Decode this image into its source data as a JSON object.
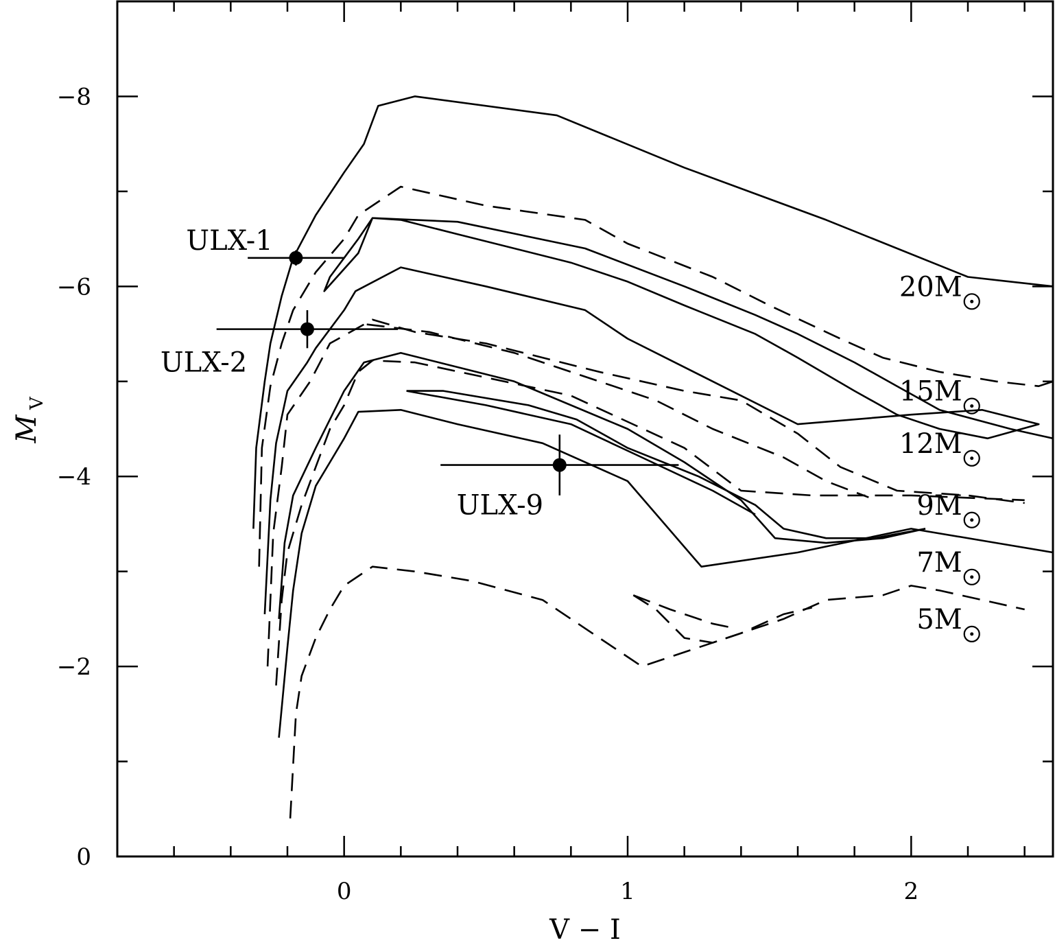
{
  "chart_data": {
    "type": "line",
    "title": "",
    "xlabel": "V − I",
    "ylabel": {
      "main": "M",
      "sub": "V"
    },
    "xlim": [
      -0.8,
      2.5
    ],
    "ylim": [
      0,
      -9
    ],
    "y_inverted": true,
    "xticks": [
      {
        "value": 0,
        "label": "0"
      },
      {
        "value": 1,
        "label": "1"
      },
      {
        "value": 2,
        "label": "2"
      }
    ],
    "yticks": [
      {
        "value": 0,
        "label": "0"
      },
      {
        "value": -2,
        "label": "−2"
      },
      {
        "value": -4,
        "label": "−4"
      },
      {
        "value": -6,
        "label": "−6"
      },
      {
        "value": -8,
        "label": "−8"
      }
    ],
    "x_minor_step": 0.2,
    "y_minor_step": 1,
    "grid": false,
    "series": [
      {
        "style": "solid",
        "points": [
          [
            -0.23,
            -1.25
          ],
          [
            -0.2,
            -2.2
          ],
          [
            -0.18,
            -2.8
          ],
          [
            -0.15,
            -3.4
          ],
          [
            -0.1,
            -3.9
          ],
          [
            -0.05,
            -4.15
          ],
          [
            0,
            -4.4
          ],
          [
            0.05,
            -4.68
          ],
          [
            0.2,
            -4.7
          ],
          [
            0.4,
            -4.55
          ],
          [
            0.7,
            -4.35
          ],
          [
            1.0,
            -3.95
          ],
          [
            1.26,
            -3.05
          ],
          [
            1.6,
            -3.2
          ],
          [
            2.0,
            -3.45
          ],
          [
            2.3,
            -3.3
          ],
          [
            2.5,
            -3.2
          ]
        ]
      },
      {
        "style": "dashed",
        "points": [
          [
            -0.19,
            -0.4
          ],
          [
            -0.17,
            -1.5
          ],
          [
            -0.15,
            -1.9
          ],
          [
            -0.1,
            -2.3
          ],
          [
            -0.05,
            -2.6
          ],
          [
            0,
            -2.85
          ],
          [
            0.1,
            -3.05
          ],
          [
            0.25,
            -3.0
          ],
          [
            0.45,
            -2.9
          ],
          [
            0.7,
            -2.7
          ],
          [
            0.85,
            -2.4
          ],
          [
            1.05,
            -2.0
          ],
          [
            1.25,
            -2.2
          ],
          [
            1.45,
            -2.4
          ],
          [
            1.55,
            -2.5
          ],
          [
            1.7,
            -2.7
          ],
          [
            1.9,
            -2.75
          ],
          [
            2.0,
            -2.85
          ],
          [
            2.1,
            -2.8
          ],
          [
            2.25,
            -2.7
          ],
          [
            2.4,
            -2.6
          ]
        ]
      },
      {
        "style": "dashed",
        "points": [
          [
            1.02,
            -2.75
          ],
          [
            1.1,
            -2.6
          ],
          [
            1.2,
            -2.3
          ],
          [
            1.3,
            -2.25
          ],
          [
            1.4,
            -2.35
          ],
          [
            1.55,
            -2.55
          ],
          [
            1.65,
            -2.62
          ]
        ]
      },
      {
        "style": "dashed",
        "points": [
          [
            1.02,
            -2.75
          ],
          [
            1.15,
            -2.6
          ],
          [
            1.3,
            -2.45
          ],
          [
            1.38,
            -2.4
          ]
        ]
      },
      {
        "style": "solid",
        "points": [
          [
            -0.23,
            -2.5
          ],
          [
            -0.21,
            -3.3
          ],
          [
            -0.18,
            -3.8
          ],
          [
            -0.1,
            -4.3
          ],
          [
            0,
            -4.9
          ],
          [
            0.07,
            -5.2
          ],
          [
            0.2,
            -5.3
          ],
          [
            0.6,
            -5.0
          ],
          [
            1.0,
            -4.5
          ],
          [
            1.2,
            -4.15
          ],
          [
            1.4,
            -3.75
          ],
          [
            1.52,
            -3.35
          ],
          [
            1.7,
            -3.3
          ],
          [
            1.9,
            -3.35
          ],
          [
            2.05,
            -3.45
          ]
        ]
      },
      {
        "style": "solid",
        "points": [
          [
            0.22,
            -4.9
          ],
          [
            0.35,
            -4.9
          ],
          [
            0.65,
            -4.75
          ],
          [
            0.82,
            -4.6
          ],
          [
            1.0,
            -4.3
          ],
          [
            1.25,
            -4.0
          ],
          [
            1.45,
            -3.7
          ],
          [
            1.55,
            -3.45
          ],
          [
            1.7,
            -3.35
          ],
          [
            1.87,
            -3.35
          ],
          [
            2.05,
            -3.45
          ]
        ]
      },
      {
        "style": "solid",
        "points": [
          [
            0.22,
            -4.9
          ],
          [
            0.5,
            -4.75
          ],
          [
            0.8,
            -4.55
          ],
          [
            1.05,
            -4.2
          ],
          [
            1.3,
            -3.85
          ],
          [
            1.45,
            -3.6
          ]
        ]
      },
      {
        "style": "dashed",
        "points": [
          [
            -0.24,
            -1.8
          ],
          [
            -0.22,
            -2.7
          ],
          [
            -0.2,
            -3.2
          ],
          [
            -0.15,
            -3.7
          ],
          [
            -0.1,
            -4.1
          ],
          [
            -0.05,
            -4.5
          ],
          [
            0,
            -4.75
          ],
          [
            0.05,
            -5.1
          ],
          [
            0.1,
            -5.22
          ],
          [
            0.25,
            -5.2
          ],
          [
            0.8,
            -4.85
          ],
          [
            1.2,
            -4.3
          ],
          [
            1.4,
            -3.85
          ],
          [
            1.65,
            -3.8
          ],
          [
            2.0,
            -3.8
          ],
          [
            2.4,
            -3.75
          ]
        ]
      },
      {
        "style": "dashed",
        "points": [
          [
            -0.27,
            -2.0
          ],
          [
            -0.25,
            -3.4
          ],
          [
            -0.22,
            -4.1
          ],
          [
            -0.2,
            -4.65
          ],
          [
            -0.12,
            -5.0
          ],
          [
            -0.05,
            -5.4
          ],
          [
            0.1,
            -5.65
          ],
          [
            0.25,
            -5.52
          ],
          [
            0.5,
            -5.4
          ],
          [
            0.9,
            -5.1
          ],
          [
            1.2,
            -4.9
          ],
          [
            1.4,
            -4.8
          ],
          [
            1.6,
            -4.45
          ],
          [
            1.75,
            -4.1
          ],
          [
            1.95,
            -3.85
          ],
          [
            2.2,
            -3.8
          ],
          [
            2.4,
            -3.72
          ]
        ]
      },
      {
        "style": "dashed",
        "points": [
          [
            0.08,
            -5.6
          ],
          [
            0.3,
            -5.52
          ],
          [
            0.6,
            -5.3
          ],
          [
            0.9,
            -5.0
          ],
          [
            1.1,
            -4.8
          ],
          [
            1.3,
            -4.5
          ],
          [
            1.55,
            -4.2
          ],
          [
            1.7,
            -3.95
          ],
          [
            1.85,
            -3.78
          ]
        ]
      },
      {
        "style": "solid",
        "points": [
          [
            -0.28,
            -2.55
          ],
          [
            -0.26,
            -3.75
          ],
          [
            -0.24,
            -4.35
          ],
          [
            -0.2,
            -4.9
          ],
          [
            -0.13,
            -5.2
          ],
          [
            -0.1,
            -5.35
          ],
          [
            0,
            -5.75
          ],
          [
            0.04,
            -5.95
          ],
          [
            0.2,
            -6.2
          ],
          [
            0.5,
            -6.0
          ],
          [
            0.85,
            -5.75
          ],
          [
            1.0,
            -5.45
          ],
          [
            1.3,
            -5.0
          ],
          [
            1.6,
            -4.55
          ],
          [
            2.0,
            -4.65
          ],
          [
            2.25,
            -4.7
          ],
          [
            2.45,
            -4.55
          ],
          [
            2.27,
            -4.4
          ],
          [
            2.1,
            -4.5
          ],
          [
            1.95,
            -4.65
          ],
          [
            1.8,
            -4.9
          ],
          [
            1.6,
            -5.25
          ],
          [
            1.45,
            -5.5
          ],
          [
            1.2,
            -5.8
          ],
          [
            1.0,
            -6.05
          ],
          [
            0.8,
            -6.25
          ],
          [
            0.4,
            -6.55
          ],
          [
            0.2,
            -6.7
          ],
          [
            0.1,
            -6.72
          ],
          [
            0.05,
            -6.5
          ],
          [
            0,
            -6.3
          ],
          [
            -0.05,
            -6.1
          ],
          [
            -0.07,
            -5.95
          ],
          [
            0.05,
            -6.35
          ],
          [
            0.1,
            -6.72
          ],
          [
            0.4,
            -6.68
          ],
          [
            0.85,
            -6.4
          ],
          [
            1.2,
            -6.0
          ],
          [
            1.45,
            -5.7
          ],
          [
            1.6,
            -5.5
          ],
          [
            1.8,
            -5.2
          ],
          [
            1.95,
            -4.95
          ],
          [
            2.1,
            -4.7
          ],
          [
            2.35,
            -4.5
          ],
          [
            2.5,
            -4.4
          ]
        ]
      },
      {
        "style": "dashed",
        "points": [
          [
            -0.3,
            -3.05
          ],
          [
            -0.29,
            -4.3
          ],
          [
            -0.26,
            -4.95
          ],
          [
            -0.22,
            -5.4
          ],
          [
            -0.18,
            -5.75
          ],
          [
            -0.1,
            -6.15
          ],
          [
            0,
            -6.5
          ],
          [
            0.05,
            -6.75
          ],
          [
            0.2,
            -7.05
          ],
          [
            0.5,
            -6.85
          ],
          [
            0.85,
            -6.7
          ],
          [
            1.0,
            -6.45
          ],
          [
            1.3,
            -6.1
          ],
          [
            1.5,
            -5.8
          ],
          [
            1.75,
            -5.45
          ],
          [
            1.9,
            -5.25
          ],
          [
            2.1,
            -5.1
          ],
          [
            2.3,
            -5.0
          ],
          [
            2.45,
            -4.95
          ],
          [
            2.5,
            -5.0
          ]
        ]
      },
      {
        "style": "solid",
        "points": [
          [
            -0.32,
            -3.45
          ],
          [
            -0.31,
            -4.3
          ],
          [
            -0.28,
            -5.0
          ],
          [
            -0.26,
            -5.4
          ],
          [
            -0.22,
            -5.9
          ],
          [
            -0.18,
            -6.3
          ],
          [
            -0.1,
            -6.75
          ],
          [
            0,
            -7.2
          ],
          [
            0.07,
            -7.5
          ],
          [
            0.12,
            -7.9
          ],
          [
            0.25,
            -8.0
          ],
          [
            0.75,
            -7.8
          ],
          [
            1.2,
            -7.25
          ],
          [
            1.7,
            -6.7
          ],
          [
            2.2,
            -6.1
          ],
          [
            2.35,
            -6.05
          ],
          [
            2.5,
            -6.0
          ]
        ]
      }
    ],
    "points": [
      {
        "label": "ULX-1",
        "x": -0.17,
        "y": -6.3,
        "xerr_lo": 0.17,
        "xerr_hi": 0.17,
        "yerr": 0.08
      },
      {
        "label": "ULX-2",
        "x": -0.13,
        "y": -5.55,
        "xerr_lo": 0.32,
        "xerr_hi": 0.32,
        "yerr": 0.2
      },
      {
        "label": "ULX-9",
        "x": 0.76,
        "y": -4.12,
        "xerr_lo": 0.42,
        "xerr_hi": 0.42,
        "yerr": 0.32
      }
    ],
    "mass_labels": [
      {
        "text": "20M",
        "x": 2.18,
        "y": -6.0
      },
      {
        "text": "15M",
        "x": 2.18,
        "y": -4.9
      },
      {
        "text": "12M",
        "x": 2.18,
        "y": -4.35
      },
      {
        "text": "9M",
        "x": 2.18,
        "y": -3.7
      },
      {
        "text": "7M",
        "x": 2.18,
        "y": -3.1
      },
      {
        "text": "5M",
        "x": 2.18,
        "y": -2.5
      }
    ]
  }
}
